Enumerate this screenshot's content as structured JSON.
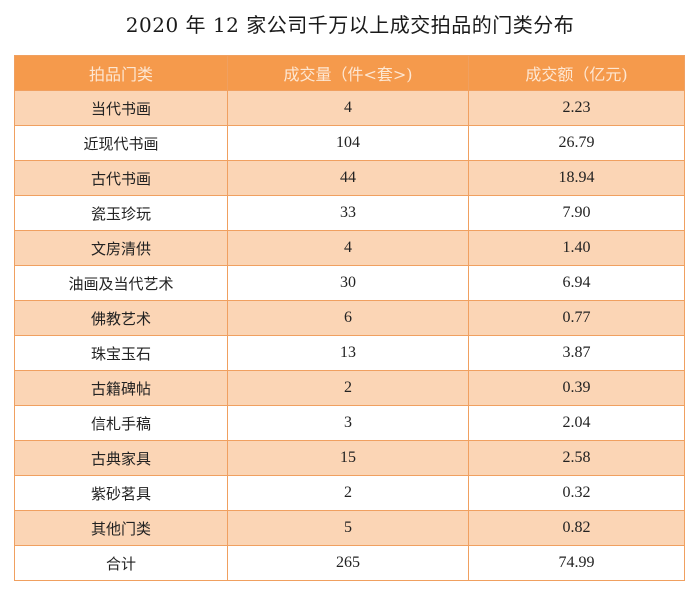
{
  "title": "2020 年 12 家公司千万以上成交拍品的门类分布",
  "table": {
    "headers": [
      "拍品门类",
      "成交量（件<套>)",
      "成交额（亿元)"
    ],
    "rows": [
      {
        "category": "当代书画",
        "count": "4",
        "amount": "2.23"
      },
      {
        "category": "近现代书画",
        "count": "104",
        "amount": "26.79"
      },
      {
        "category": "古代书画",
        "count": "44",
        "amount": "18.94"
      },
      {
        "category": "瓷玉珍玩",
        "count": "33",
        "amount": "7.90"
      },
      {
        "category": "文房清供",
        "count": "4",
        "amount": "1.40"
      },
      {
        "category": "油画及当代艺术",
        "count": "30",
        "amount": "6.94"
      },
      {
        "category": "佛教艺术",
        "count": "6",
        "amount": "0.77"
      },
      {
        "category": "珠宝玉石",
        "count": "13",
        "amount": "3.87"
      },
      {
        "category": "古籍碑帖",
        "count": "2",
        "amount": "0.39"
      },
      {
        "category": "信札手稿",
        "count": "3",
        "amount": "2.04"
      },
      {
        "category": "古典家具",
        "count": "15",
        "amount": "2.58"
      },
      {
        "category": "紫砂茗具",
        "count": "2",
        "amount": "0.32"
      },
      {
        "category": "其他门类",
        "count": "5",
        "amount": "0.82"
      },
      {
        "category": "合计",
        "count": "265",
        "amount": "74.99"
      }
    ]
  },
  "colors": {
    "header_bg": "#f59a4c",
    "header_text": "#fde7d3",
    "shade_row": "#fbd5b5",
    "border": "#f0a060"
  }
}
